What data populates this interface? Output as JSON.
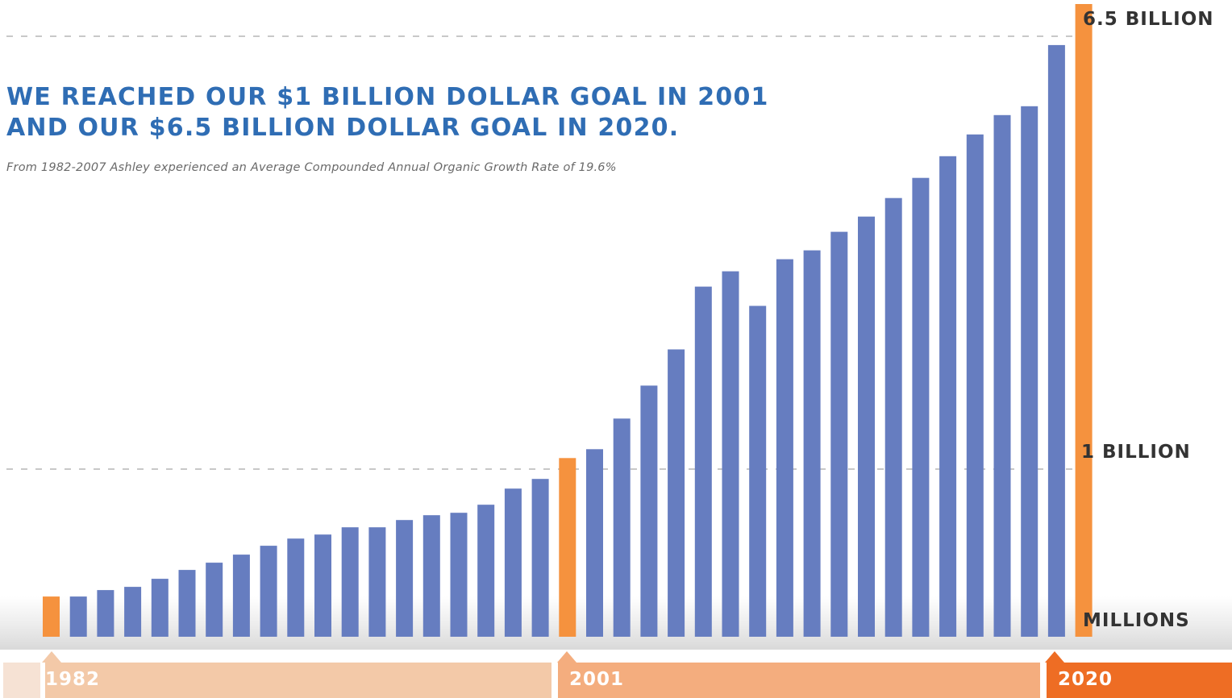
{
  "chart_data": {
    "type": "bar",
    "title_lines": [
      "WE REACHED OUR $1 BILLION DOLLAR GOAL IN 2001",
      "AND OUR $6.5 BILLION DOLLAR GOAL IN 2020."
    ],
    "subtitle": "From 1982-2007 Ashley experienced an Average Compounded Annual Organic Growth Rate of 19.6%",
    "y_axis_labels": {
      "top": "6.5 BILLION",
      "middle": "1 BILLION",
      "bottom": "MILLIONS"
    },
    "y_scale": "nonlinear",
    "timeline_labels": [
      "1982",
      "2001",
      "2020"
    ],
    "highlight_indices": [
      0,
      19,
      38
    ],
    "values": [
      50,
      50,
      58,
      62,
      72,
      83,
      92,
      102,
      113,
      122,
      127,
      136,
      136,
      145,
      151,
      154,
      164,
      184,
      196,
      222,
      233,
      271,
      312,
      357,
      435,
      454,
      411,
      469,
      480,
      503,
      522,
      545,
      570,
      597,
      624,
      648,
      659,
      735,
      786
    ],
    "colors": {
      "bar": "#667dc0",
      "highlight": "#f5923e",
      "title": "#2f6db4",
      "gridline": "#c8c8c8",
      "seg_light": "#f3c9a8",
      "seg_mid": "#f4ad7e",
      "seg_dark": "#ee6d24",
      "seg_pale": "#f6e2d4"
    }
  }
}
